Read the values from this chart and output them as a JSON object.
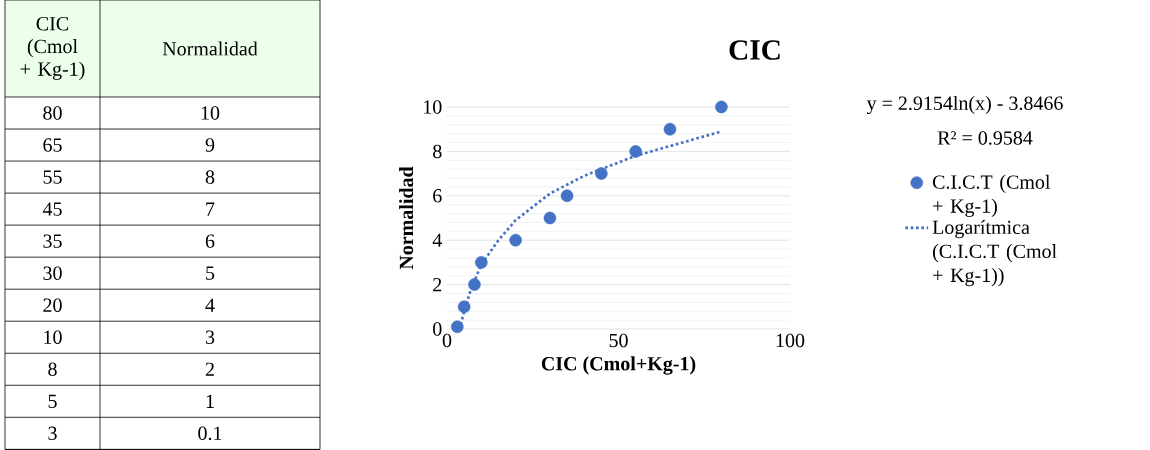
{
  "chart_data": [
    {
      "type": "other",
      "annotations": [
        "CIC (Cmol + Kg-1)",
        "Normalidad",
        "80",
        "10",
        "65",
        "9",
        "55",
        "8",
        "45",
        "7",
        "35",
        "6",
        "30",
        "5",
        "20",
        "4",
        "10",
        "3",
        "8",
        "2",
        "5",
        "1",
        "3",
        "0.1"
      ]
    },
    {
      "type": "scatter",
      "title": "CIC",
      "xlabel": "CIC (Cmol+Kg-1)",
      "ylabel": "Normalidad",
      "xlim": [
        0,
        100
      ],
      "xticks": [
        0,
        50,
        100
      ],
      "ylim": [
        0,
        10
      ],
      "yticks": [
        0,
        2,
        4,
        6,
        8,
        10
      ],
      "grid": "y",
      "legend": "right",
      "annotations": [
        "y = 2.9154ln(x) - 3.8466",
        "R² = 0.9584"
      ],
      "series": [
        {
          "name": "C.I.C.T   (Cmol + Kg-1)",
          "type": "scatter",
          "marker": "circle",
          "color": "#4472c4",
          "x": [
            80,
            65,
            55,
            45,
            35,
            30,
            20,
            10,
            8,
            5,
            3
          ],
          "values": [
            10,
            9,
            8,
            7,
            6,
            5,
            4,
            3,
            2,
            1,
            0.1
          ]
        },
        {
          "name": "Logarítmica (C.I.C.T   (Cmol + Kg-1))",
          "type": "line",
          "marker": "none",
          "line_style": "dotted",
          "color": "#4472c4",
          "x": [
            4,
            5,
            7,
            10,
            15,
            20,
            30,
            40,
            55,
            80
          ],
          "values": [
            0.2,
            0.8,
            1.8,
            2.9,
            4.0,
            4.9,
            6.1,
            6.9,
            7.8,
            8.9
          ]
        }
      ]
    }
  ]
}
